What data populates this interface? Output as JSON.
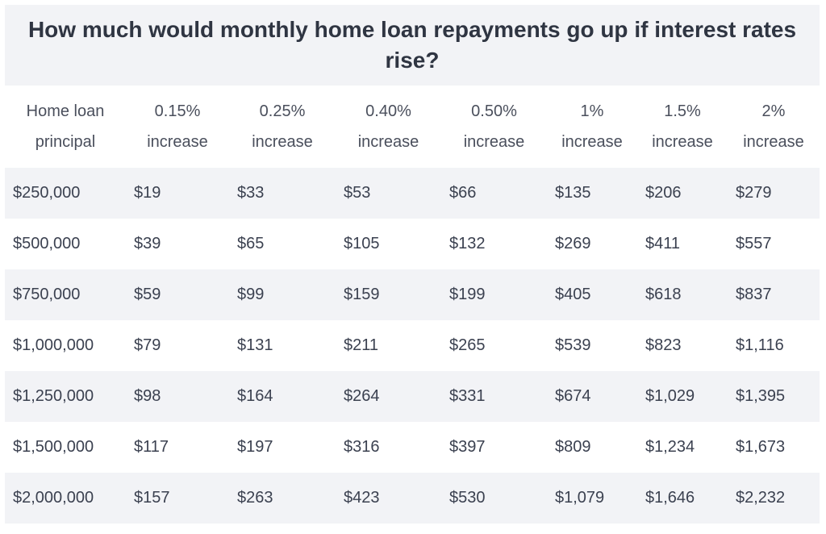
{
  "chart_data": {
    "type": "table",
    "title": "How much would monthly home loan repayments go up if interest rates rise?",
    "columns": [
      [
        "Home loan",
        "principal"
      ],
      [
        "0.15%",
        "increase"
      ],
      [
        "0.25%",
        "increase"
      ],
      [
        "0.40%",
        "increase"
      ],
      [
        "0.50%",
        "increase"
      ],
      [
        "1%",
        "increase"
      ],
      [
        "1.5%",
        "increase"
      ],
      [
        "2%",
        "increase"
      ]
    ],
    "rows": [
      [
        "$250,000",
        "$19",
        "$33",
        "$53",
        "$66",
        "$135",
        "$206",
        "$279"
      ],
      [
        "$500,000",
        "$39",
        "$65",
        "$105",
        "$132",
        "$269",
        "$411",
        "$557"
      ],
      [
        "$750,000",
        "$59",
        "$99",
        "$159",
        "$199",
        "$405",
        "$618",
        "$837"
      ],
      [
        "$1,000,000",
        "$79",
        "$131",
        "$211",
        "$265",
        "$539",
        "$823",
        "$1,116"
      ],
      [
        "$1,250,000",
        "$98",
        "$164",
        "$264",
        "$331",
        "$674",
        "$1,029",
        "$1,395"
      ],
      [
        "$1,500,000",
        "$117",
        "$197",
        "$316",
        "$397",
        "$809",
        "$1,234",
        "$1,673"
      ],
      [
        "$2,000,000",
        "$157",
        "$263",
        "$423",
        "$530",
        "$1,079",
        "$1,646",
        "$2,232"
      ]
    ]
  },
  "colors": {
    "band": "#f2f3f6",
    "text": "#3b4150",
    "title_text": "#2f3542"
  }
}
